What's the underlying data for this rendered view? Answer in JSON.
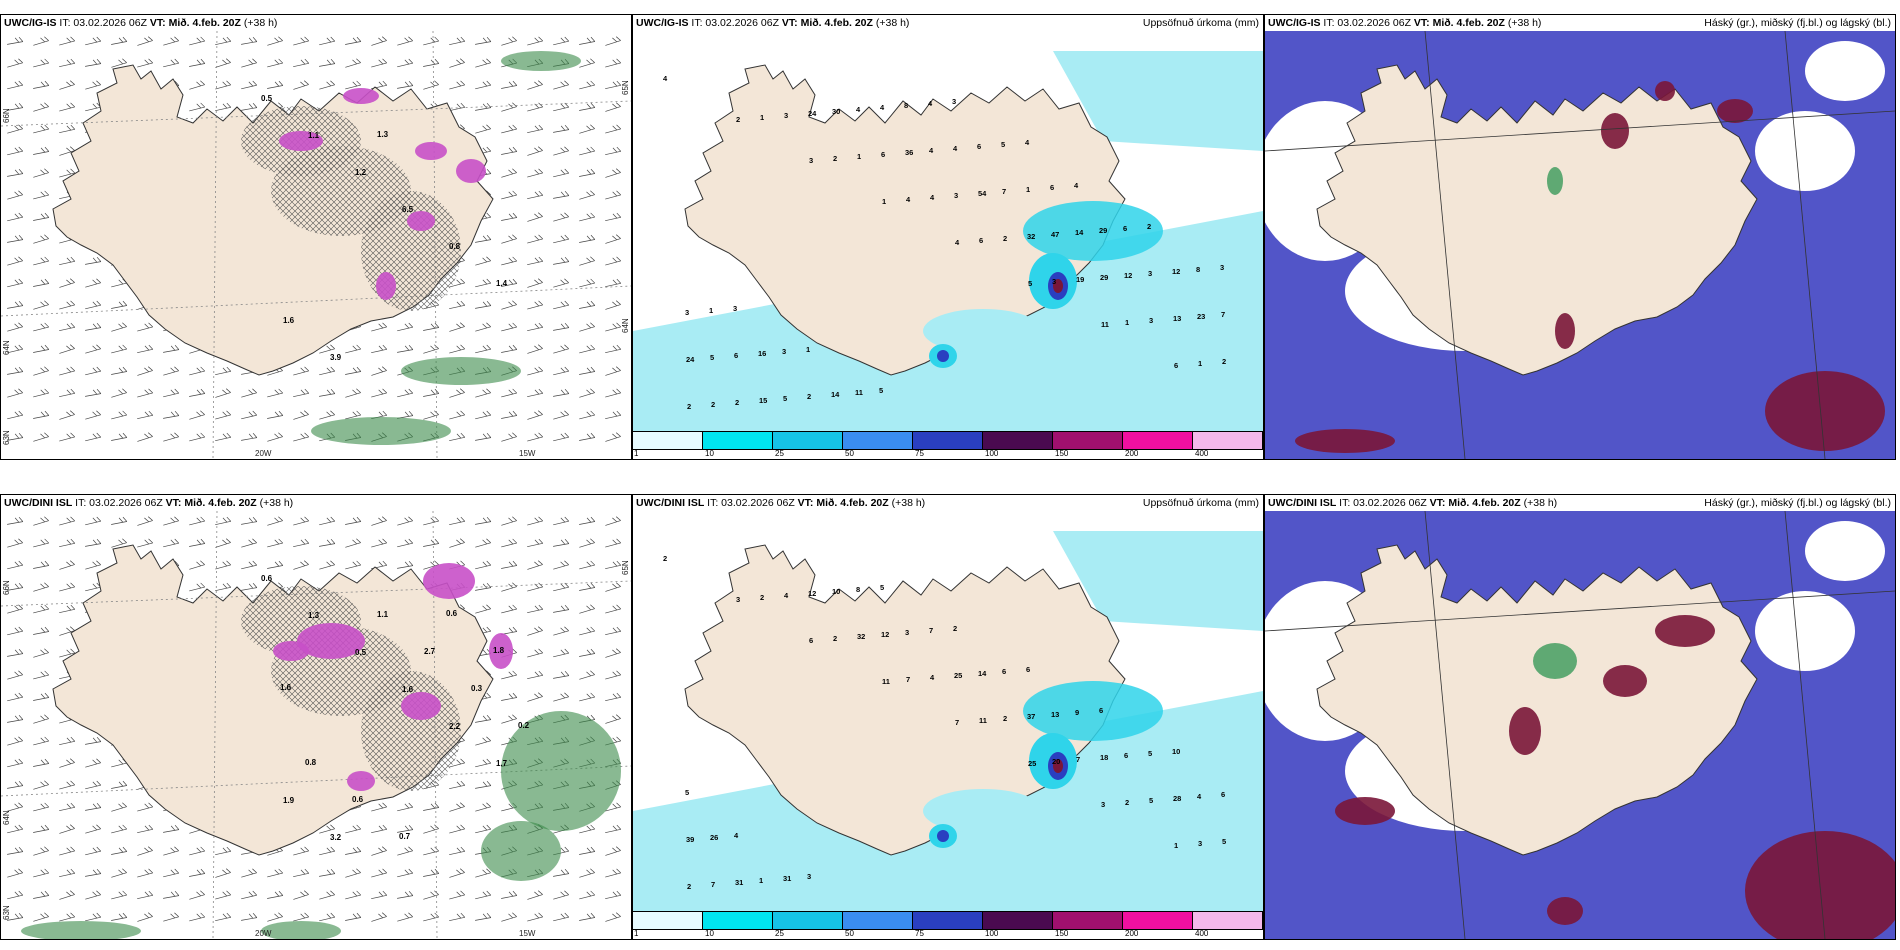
{
  "panels": [
    {
      "model": "UWC/IG-IS",
      "it": "IT: 03.02.2026 06Z",
      "vt": "VT: Mið. 4.feb. 20Z",
      "lead": "(+38 h)",
      "title": "",
      "lon_labels": [
        "20W",
        "15W"
      ],
      "lat_labels": [
        "66N",
        "64N",
        "63N"
      ],
      "lat_labels_right": [
        "65N",
        "64N"
      ],
      "value_labels": [
        "0.5",
        "1.1",
        "1.2",
        "6.5",
        "0.8",
        "1.4",
        "1.6",
        "3.9",
        "1.3"
      ]
    },
    {
      "model": "UWC/IG-IS",
      "it": "IT: 03.02.2026 06Z",
      "vt": "VT: Mið. 4.feb. 20Z",
      "lead": "(+38 h)",
      "title": "Uppsöfnuð úrkoma (mm)",
      "numbers": [
        "4",
        "2",
        "3",
        "1",
        "4",
        "5",
        "11",
        "6",
        "2",
        "1",
        "2",
        "4",
        "6",
        "3",
        "1",
        "1",
        "2",
        "3",
        "1",
        "4",
        "2",
        "19",
        "3",
        "2",
        "2",
        "24",
        "6",
        "3",
        "32",
        "29",
        "13",
        "24",
        "15",
        "30",
        "36",
        "54",
        "47",
        "12",
        "23",
        "5",
        "5",
        "4",
        "4",
        "7",
        "14",
        "3",
        "7",
        "6",
        "2",
        "4",
        "4",
        "1",
        "29",
        "12",
        "3",
        "16",
        "14",
        "8",
        "6",
        "6",
        "6",
        "8",
        "1",
        "3",
        "11",
        "4",
        "5",
        "4",
        "2",
        "3",
        "3",
        "1",
        "5",
        "3",
        "4"
      ]
    },
    {
      "model": "UWC/IG-IS",
      "it": "IT: 03.02.2026 06Z",
      "vt": "VT: Mið. 4.feb. 20Z",
      "lead": "(+38 h)",
      "title": "Háský (gr.), miðský (fj.bl.) og lágský (bl.)"
    },
    {
      "model": "UWC/DINI ISL",
      "it": "IT: 03.02.2026 06Z",
      "vt": "VT: Mið. 4.feb. 20Z",
      "lead": "(+38 h)",
      "title": "",
      "lon_labels": [
        "20W",
        "15W"
      ],
      "lat_labels": [
        "66N",
        "64N",
        "63N"
      ],
      "lat_labels_right": [
        "65N"
      ],
      "value_labels": [
        "0.6",
        "1.3",
        "0.5",
        "1.6",
        "2.2",
        "1.7",
        "1.9",
        "3.2",
        "1.1",
        "2.7",
        "0.3",
        "0.2",
        "0.8",
        "0.6",
        "0.7",
        "0.6",
        "1.8",
        "1.6"
      ]
    },
    {
      "model": "UWC/DINI ISL",
      "it": "IT: 03.02.2026 06Z",
      "vt": "VT: Mið. 4.feb. 20Z",
      "lead": "(+38 h)",
      "title": "Uppsöfnuð úrkoma (mm)",
      "numbers": [
        "2",
        "3",
        "6",
        "11",
        "7",
        "25",
        "3",
        "1",
        "2",
        "2",
        "2",
        "7",
        "11",
        "20",
        "2",
        "3",
        "7",
        "4",
        "32",
        "4",
        "2",
        "7",
        "5",
        "5",
        "31",
        "12",
        "12",
        "25",
        "37",
        "18",
        "28",
        "39",
        "1",
        "10",
        "3",
        "14",
        "13",
        "6",
        "4",
        "26",
        "31",
        "8",
        "7",
        "6",
        "9",
        "5",
        "6",
        "4",
        "3",
        "5",
        "2",
        "6",
        "6",
        "10",
        "5"
      ]
    },
    {
      "model": "UWC/DINI ISL",
      "it": "IT: 03.02.2026 06Z",
      "vt": "VT: Mið. 4.feb. 20Z",
      "lead": "(+38 h)",
      "title": "Háský (gr.), miðský (fj.bl.) og lágský (bl.)"
    }
  ],
  "colorbar": {
    "ticks": [
      "1",
      "10",
      "25",
      "50",
      "75",
      "100",
      "150",
      "200",
      "400"
    ],
    "colors": [
      "#e6fbff",
      "#00e5f0",
      "#16c4e6",
      "#3a8df0",
      "#2a3fc0",
      "#4a0a50",
      "#a0106e",
      "#f010a0",
      "#f4b8ea"
    ]
  },
  "colors": {
    "land": "#f3e6d7",
    "wet_light": "#a9ecf4",
    "wet_mid": "#2fd4ea",
    "cloud_high": "#5255c8",
    "cloud_low": "#7a1638",
    "precip_pink": "#c850c8",
    "snow_green": "#3a8a4a"
  }
}
